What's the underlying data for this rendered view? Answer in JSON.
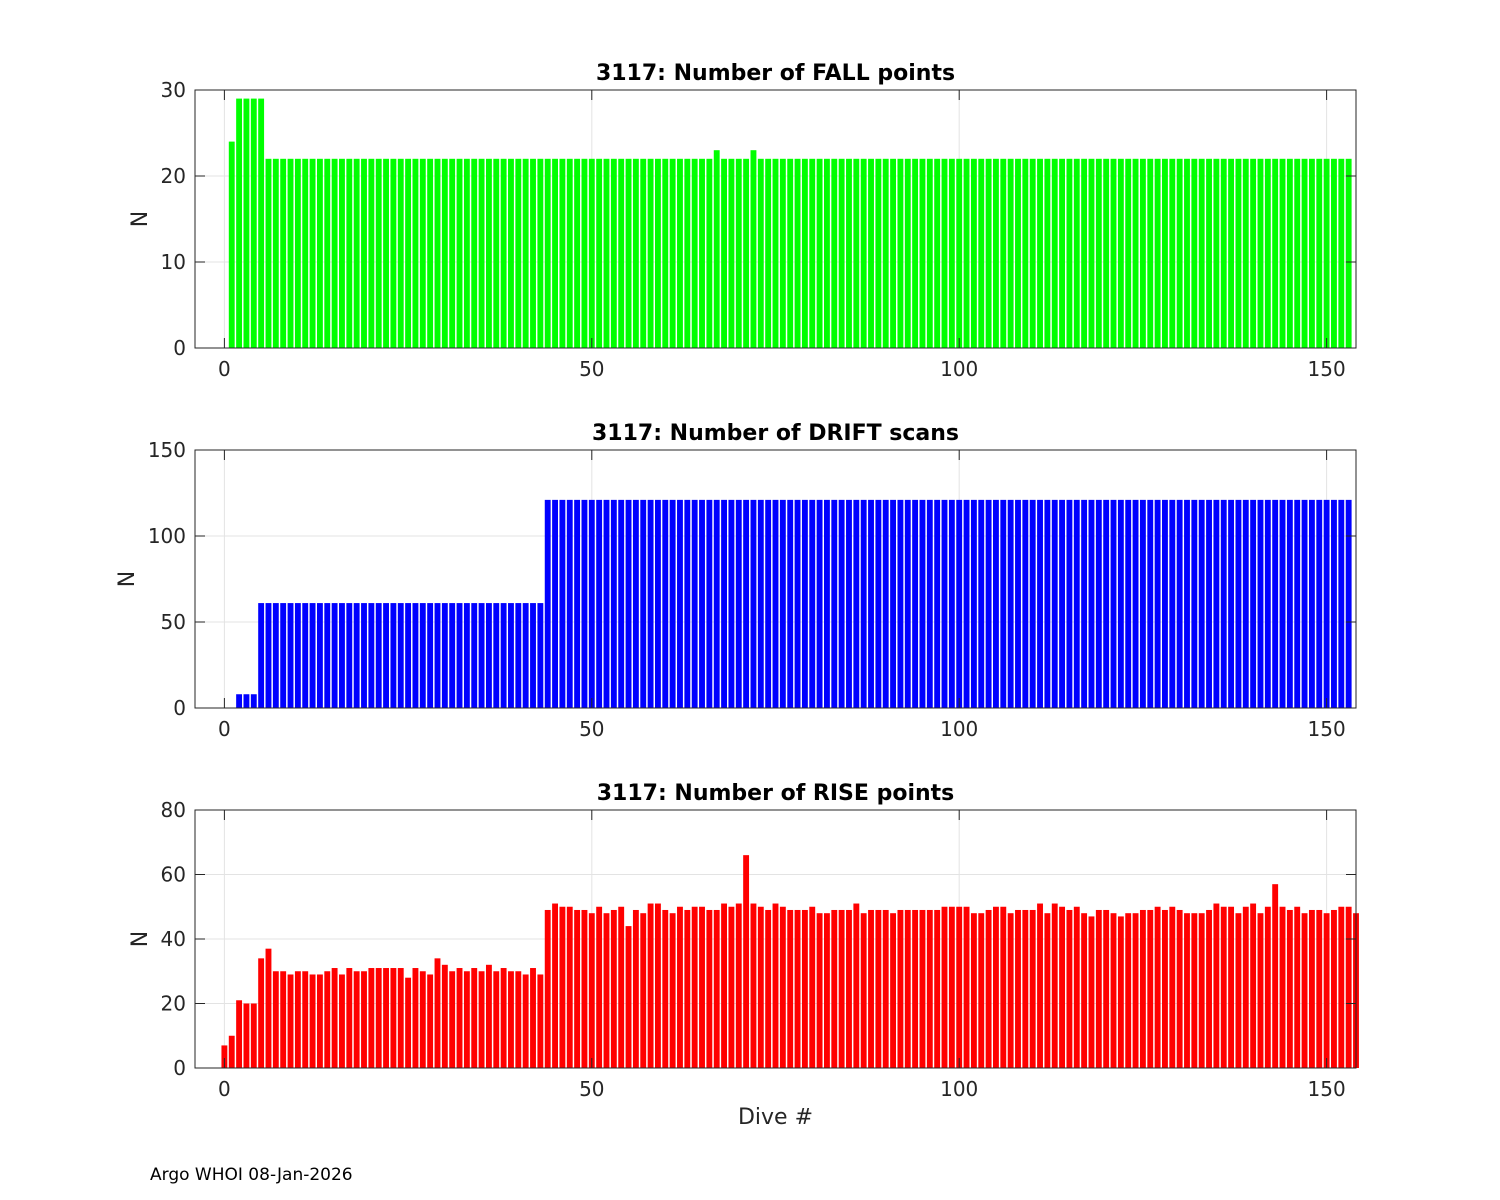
{
  "footer": "Argo WHOI 08-Jan-2026",
  "chart_data": [
    {
      "type": "bar",
      "title": "3117: Number of FALL points",
      "xlabel": "",
      "ylabel": "N",
      "color": "#00ff00",
      "xlim": [
        -4,
        154
      ],
      "ylim": [
        0,
        30
      ],
      "xticks": [
        0,
        50,
        100,
        150
      ],
      "yticks": [
        0,
        10,
        20,
        30
      ],
      "grid": true,
      "x_start": 1,
      "values": [
        24,
        29,
        29,
        29,
        29,
        22,
        22,
        22,
        22,
        22,
        22,
        22,
        22,
        22,
        22,
        22,
        22,
        22,
        22,
        22,
        22,
        22,
        22,
        22,
        22,
        22,
        22,
        22,
        22,
        22,
        22,
        22,
        22,
        22,
        22,
        22,
        22,
        22,
        22,
        22,
        22,
        22,
        22,
        22,
        22,
        22,
        22,
        22,
        22,
        22,
        22,
        22,
        22,
        22,
        22,
        22,
        22,
        22,
        22,
        22,
        22,
        22,
        22,
        22,
        22,
        22,
        23,
        22,
        22,
        22,
        22,
        23,
        22,
        22,
        22,
        22,
        22,
        22,
        22,
        22,
        22,
        22,
        22,
        22,
        22,
        22,
        22,
        22,
        22,
        22,
        22,
        22,
        22,
        22,
        22,
        22,
        22,
        22,
        22,
        22,
        22,
        22,
        22,
        22,
        22,
        22,
        22,
        22,
        22,
        22,
        22,
        22,
        22,
        22,
        22,
        22,
        22,
        22,
        22,
        22,
        22,
        22,
        22,
        22,
        22,
        22,
        22,
        22,
        22,
        22,
        22,
        22,
        22,
        22,
        22,
        22,
        22,
        22,
        22,
        22,
        22,
        22,
        22,
        22,
        22,
        22,
        22,
        22,
        22,
        22,
        22,
        22,
        22
      ]
    },
    {
      "type": "bar",
      "title": "3117: Number of DRIFT scans",
      "xlabel": "",
      "ylabel": "N",
      "color": "#0000ff",
      "xlim": [
        -4,
        154
      ],
      "ylim": [
        0,
        150
      ],
      "xticks": [
        0,
        50,
        100,
        150
      ],
      "yticks": [
        0,
        50,
        100,
        150
      ],
      "grid": true,
      "x_start": 1,
      "values": [
        0,
        8,
        8,
        8,
        61,
        61,
        61,
        61,
        61,
        61,
        61,
        61,
        61,
        61,
        61,
        61,
        61,
        61,
        61,
        61,
        61,
        61,
        61,
        61,
        61,
        61,
        61,
        61,
        61,
        61,
        61,
        61,
        61,
        61,
        61,
        61,
        61,
        61,
        61,
        61,
        61,
        61,
        61,
        121,
        121,
        121,
        121,
        121,
        121,
        121,
        121,
        121,
        121,
        121,
        121,
        121,
        121,
        121,
        121,
        121,
        121,
        121,
        121,
        121,
        121,
        121,
        121,
        121,
        121,
        121,
        121,
        121,
        121,
        121,
        121,
        121,
        121,
        121,
        121,
        121,
        121,
        121,
        121,
        121,
        121,
        121,
        121,
        121,
        121,
        121,
        121,
        121,
        121,
        121,
        121,
        121,
        121,
        121,
        121,
        121,
        121,
        121,
        121,
        121,
        121,
        121,
        121,
        121,
        121,
        121,
        121,
        121,
        121,
        121,
        121,
        121,
        121,
        121,
        121,
        121,
        121,
        121,
        121,
        121,
        121,
        121,
        121,
        121,
        121,
        121,
        121,
        121,
        121,
        121,
        121,
        121,
        121,
        121,
        121,
        121,
        121,
        121,
        121,
        121,
        121,
        121,
        121,
        121,
        121,
        121,
        121,
        121,
        121
      ]
    },
    {
      "type": "bar",
      "title": "3117: Number of RISE points",
      "xlabel": "Dive #",
      "ylabel": "N",
      "color": "#ff0000",
      "xlim": [
        -4,
        154
      ],
      "ylim": [
        0,
        80
      ],
      "xticks": [
        0,
        50,
        100,
        150
      ],
      "yticks": [
        0,
        20,
        40,
        60,
        80
      ],
      "grid": true,
      "x_start": 0,
      "values": [
        7,
        10,
        21,
        20,
        20,
        34,
        37,
        30,
        30,
        29,
        30,
        30,
        29,
        29,
        30,
        31,
        29,
        31,
        30,
        30,
        31,
        31,
        31,
        31,
        31,
        28,
        31,
        30,
        29,
        34,
        32,
        30,
        31,
        30,
        31,
        30,
        32,
        30,
        31,
        30,
        30,
        29,
        31,
        29,
        49,
        51,
        50,
        50,
        49,
        49,
        48,
        50,
        48,
        49,
        50,
        44,
        49,
        48,
        51,
        51,
        49,
        48,
        50,
        49,
        50,
        50,
        49,
        49,
        51,
        50,
        51,
        66,
        51,
        50,
        49,
        51,
        50,
        49,
        49,
        49,
        50,
        48,
        48,
        49,
        49,
        49,
        51,
        48,
        49,
        49,
        49,
        48,
        49,
        49,
        49,
        49,
        49,
        49,
        50,
        50,
        50,
        50,
        48,
        48,
        49,
        50,
        50,
        48,
        49,
        49,
        49,
        51,
        48,
        51,
        50,
        49,
        50,
        48,
        47,
        49,
        49,
        48,
        47,
        48,
        48,
        49,
        49,
        50,
        49,
        50,
        49,
        48,
        48,
        48,
        49,
        51,
        50,
        50,
        48,
        50,
        51,
        48,
        50,
        57,
        50,
        49,
        50,
        48,
        49,
        49,
        48,
        49,
        50,
        50,
        48
      ]
    }
  ]
}
